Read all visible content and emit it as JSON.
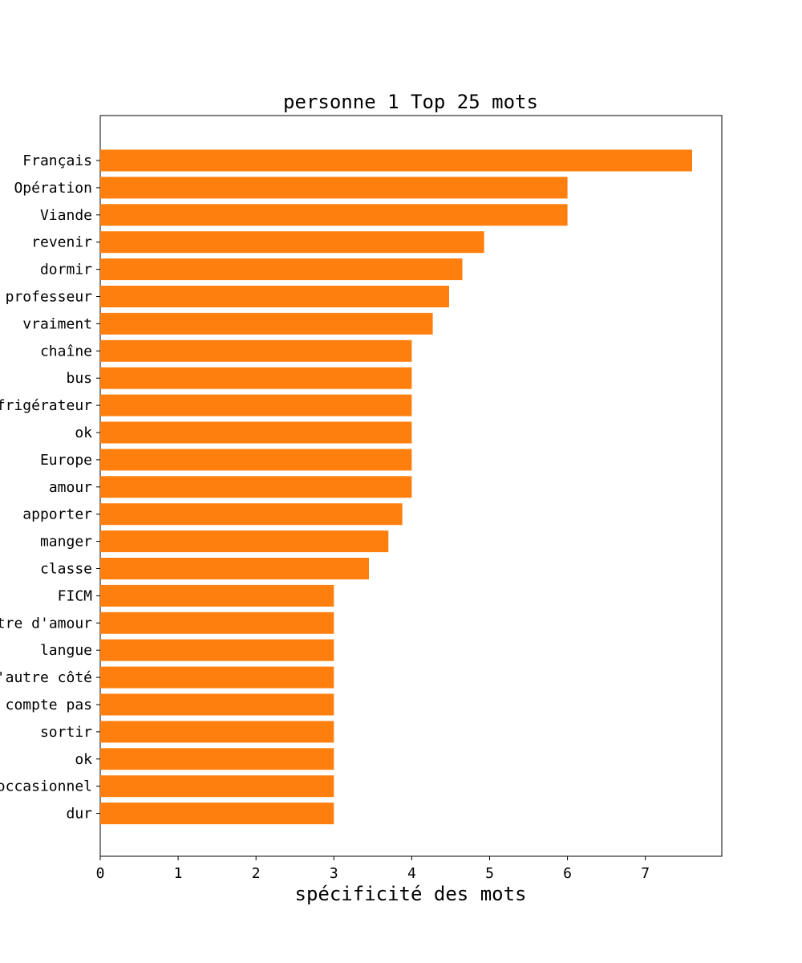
{
  "chart_data": {
    "type": "bar",
    "orientation": "horizontal",
    "title": "personne 1 Top 25 mots",
    "xlabel": "spécificité des mots",
    "ylabel": "",
    "xlim": [
      0,
      8
    ],
    "xticks": [
      "0",
      "1",
      "2",
      "3",
      "4",
      "5",
      "6",
      "7"
    ],
    "bar_color": "#ff7f0e",
    "grid": false,
    "categories": [
      "Français",
      "Opération",
      "Viande",
      "revenir",
      "dormir",
      "professeur",
      "vraiment",
      "chaîne",
      "bus",
      "réfrigérateur",
      "ok",
      "Europe",
      "amour",
      "apporter",
      "manger",
      "classe",
      "FICM",
      "lettre d'amour",
      "langue",
      "de l'autre côté",
      "ne compte pas",
      "sortir",
      "ok",
      "occasionnel",
      "dur"
    ],
    "values": [
      7.6,
      6.0,
      6.0,
      4.93,
      4.65,
      4.48,
      4.27,
      4.0,
      4.0,
      4.0,
      4.0,
      4.0,
      4.0,
      3.88,
      3.7,
      3.45,
      3.0,
      3.0,
      3.0,
      3.0,
      3.0,
      3.0,
      3.0,
      3.0,
      3.0
    ]
  }
}
